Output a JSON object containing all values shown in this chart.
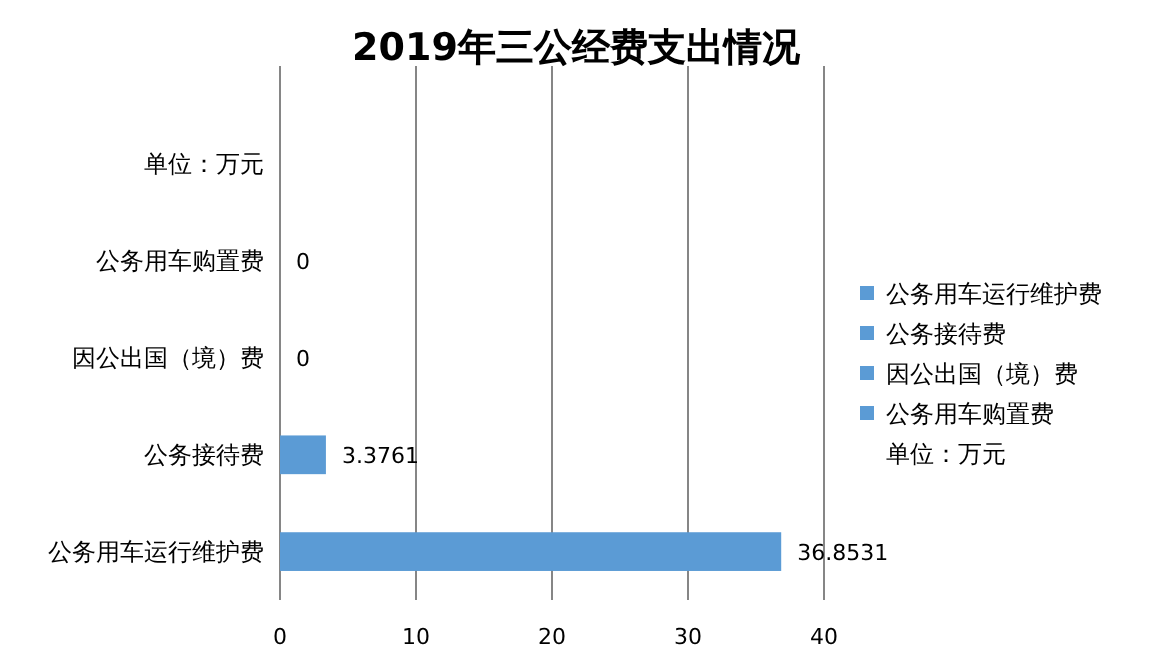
{
  "chart_data": {
    "type": "bar",
    "orientation": "horizontal",
    "title": "2019年三公经费支出情况",
    "categories": [
      "单位：万元",
      "公务用车购置费",
      "因公出国（境）费",
      "公务接待费",
      "公务用车运行维护费"
    ],
    "series": [
      {
        "name": "单位：万元",
        "color": null,
        "values": [
          null,
          null,
          null,
          null,
          null
        ]
      },
      {
        "name": "公务用车购置费",
        "color": "#5b9bd5",
        "values": [
          null,
          0,
          null,
          null,
          null
        ]
      },
      {
        "name": "因公出国（境）费",
        "color": "#5b9bd5",
        "values": [
          null,
          null,
          0,
          null,
          null
        ]
      },
      {
        "name": "公务接待费",
        "color": "#5b9bd5",
        "values": [
          null,
          null,
          null,
          3.3761,
          null
        ]
      },
      {
        "name": "公务用车运行维护费",
        "color": "#5b9bd5",
        "values": [
          null,
          null,
          null,
          null,
          36.8531
        ]
      }
    ],
    "xlim": [
      0,
      40
    ],
    "xticks": [
      0,
      10,
      20,
      30,
      40
    ],
    "grid": "x",
    "legend": "right",
    "data_labels": true
  }
}
